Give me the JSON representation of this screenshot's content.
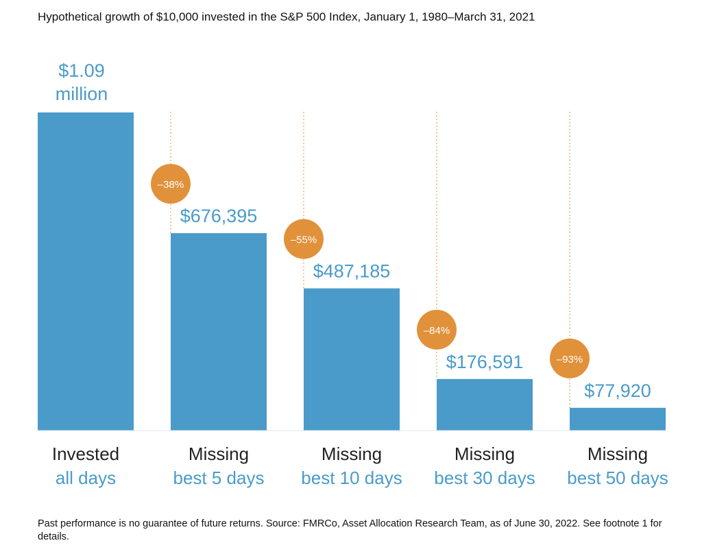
{
  "title": "Hypothetical growth of $10,000 invested in the S&P 500 Index, January 1, 1980–March 31, 2021",
  "footnote": "Past performance is no guarantee of future returns. Source: FMRCo, Asset Allocation Research Team, as of June 30, 2022. See footnote 1 for details.",
  "colors": {
    "bar": "#4a9bca",
    "value_text": "#4a9bca",
    "badge": "#e0913a",
    "badge_text": "#ffffff",
    "label_dark": "#222222",
    "label_light": "#4a9bca",
    "dotted_line": "#e0913a"
  },
  "chart_data": {
    "type": "bar",
    "title": "Hypothetical growth of $10,000 invested in the S&P 500 Index, January 1, 1980–March 31, 2021",
    "categories": [
      {
        "line1": "Invested",
        "line2": "all days"
      },
      {
        "line1": "Missing",
        "line2": "best 5 days"
      },
      {
        "line1": "Missing",
        "line2": "best 10 days"
      },
      {
        "line1": "Missing",
        "line2": "best 30 days"
      },
      {
        "line1": "Missing",
        "line2": "best 50 days"
      }
    ],
    "values": [
      1090000,
      676395,
      487185,
      176591,
      77920
    ],
    "value_labels": [
      [
        "$1.09",
        "million"
      ],
      [
        "$676,395"
      ],
      [
        "$487,185"
      ],
      [
        "$176,591"
      ],
      [
        "$77,920"
      ]
    ],
    "change_labels": [
      "",
      "–38%",
      "–55%",
      "–84%",
      "–93%"
    ],
    "ylim": [
      0,
      1090000
    ],
    "grid": false,
    "legend": "none"
  }
}
